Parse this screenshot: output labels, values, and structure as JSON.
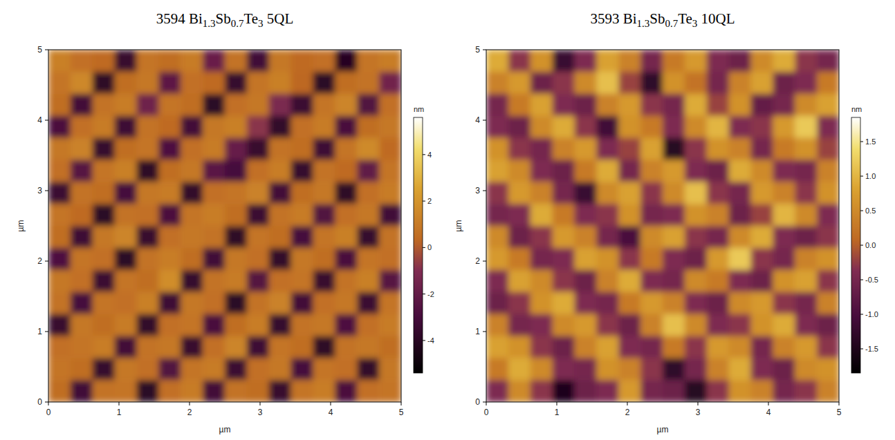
{
  "chart_data": [
    {
      "type": "heatmap",
      "title": "3594 Bi1.3Sb0.7Te3 5QL",
      "x_label": "µm",
      "y_label": "µm",
      "xlim": [
        0,
        5
      ],
      "ylim": [
        0,
        5
      ],
      "xticks": [
        0,
        1,
        2,
        3,
        4,
        5
      ],
      "yticks": [
        0,
        1,
        2,
        3,
        4,
        5
      ],
      "x": [
        0.15625,
        0.46875,
        0.78125,
        1.09375,
        1.40625,
        1.71875,
        2.03125,
        2.34375,
        2.65625,
        2.96875,
        3.28125,
        3.59375,
        3.90625,
        4.21875,
        4.53125,
        4.84375
      ],
      "y": [
        4.84375,
        4.53125,
        4.21875,
        3.90625,
        3.59375,
        3.28125,
        2.96875,
        2.65625,
        2.34375,
        2.03125,
        1.71875,
        1.40625,
        1.09375,
        0.78125,
        0.46875,
        0.15625
      ],
      "cells": [
        [
          1.2,
          0.6,
          0.4,
          -3.5,
          0.8,
          0.5,
          1.0,
          -1.8,
          0.7,
          -3.2,
          0.9,
          0.4,
          0.6,
          -4.1,
          0.8,
          1.1
        ],
        [
          0.8,
          1.5,
          -3.8,
          0.5,
          0.9,
          -2.2,
          0.6,
          0.4,
          -3.6,
          0.8,
          1.2,
          0.3,
          -3.9,
          0.5,
          0.7,
          -1.5
        ],
        [
          0.5,
          -3.1,
          0.7,
          1.1,
          -1.6,
          0.8,
          0.5,
          -3.9,
          0.6,
          0.9,
          -1.2,
          -3.4,
          0.8,
          1.4,
          -2.6,
          0.6
        ],
        [
          -2.8,
          0.6,
          1.0,
          -3.3,
          0.7,
          0.4,
          -3.1,
          0.9,
          1.2,
          -0.8,
          -3.7,
          0.6,
          1.0,
          -2.9,
          0.5,
          0.9
        ],
        [
          0.9,
          1.3,
          -3.6,
          0.5,
          0.8,
          -2.7,
          0.6,
          1.0,
          -1.9,
          -3.5,
          0.7,
          0.5,
          -3.3,
          0.8,
          1.6,
          0.4
        ],
        [
          0.6,
          -2.4,
          0.8,
          1.2,
          -3.8,
          0.5,
          0.9,
          -2.3,
          -3.0,
          0.6,
          1.1,
          -3.6,
          0.7,
          0.4,
          -2.1,
          0.8
        ],
        [
          -3.4,
          0.7,
          0.5,
          -3.0,
          0.9,
          1.0,
          -3.7,
          0.6,
          0.8,
          1.3,
          -3.1,
          0.5,
          0.9,
          -3.8,
          0.6,
          1.0
        ],
        [
          0.8,
          0.4,
          -3.9,
          0.7,
          0.6,
          -2.8,
          0.8,
          1.1,
          0.5,
          -3.4,
          0.7,
          1.0,
          -2.6,
          0.6,
          0.9,
          -3.2
        ],
        [
          0.5,
          -3.3,
          0.9,
          1.4,
          -3.5,
          0.6,
          0.9,
          0.7,
          -3.8,
          0.8,
          0.5,
          -3.0,
          0.8,
          1.2,
          -3.6,
          0.7
        ],
        [
          -2.7,
          0.8,
          0.6,
          -3.9,
          0.7,
          1.1,
          0.5,
          -3.2,
          0.9,
          0.6,
          -3.7,
          0.9,
          0.5,
          -2.9,
          0.8,
          0.6
        ],
        [
          0.9,
          0.6,
          -3.4,
          0.8,
          0.5,
          1.7,
          -3.6,
          0.7,
          1.0,
          -2.5,
          0.6,
          0.8,
          -3.5,
          0.7,
          1.2,
          -2.4
        ],
        [
          0.7,
          -3.0,
          0.8,
          0.6,
          1.2,
          -3.3,
          0.9,
          0.6,
          -3.9,
          0.7,
          1.3,
          -3.1,
          0.6,
          0.9,
          -3.4,
          0.8
        ],
        [
          -3.5,
          0.9,
          0.5,
          1.0,
          -3.7,
          0.6,
          0.8,
          -2.9,
          0.5,
          1.1,
          -3.6,
          0.7,
          0.9,
          -2.7,
          0.6,
          1.0
        ],
        [
          0.6,
          0.8,
          1.1,
          -3.1,
          0.7,
          0.9,
          -3.5,
          0.6,
          1.4,
          -3.3,
          0.8,
          0.5,
          -3.8,
          0.7,
          0.9,
          0.5
        ],
        [
          0.8,
          0.5,
          -3.6,
          0.9,
          0.6,
          -2.6,
          0.8,
          1.0,
          -3.4,
          0.6,
          0.9,
          -3.0,
          0.8,
          0.6,
          -3.7,
          0.9
        ],
        [
          0.5,
          -3.2,
          0.7,
          0.8,
          -3.9,
          0.6,
          1.0,
          -3.1,
          0.7,
          0.5,
          -3.5,
          0.8,
          1.1,
          -2.8,
          0.6,
          0.8
        ]
      ],
      "colorbar": {
        "label": "nm",
        "range": [
          -5.4,
          5.6
        ],
        "ticks": [
          -4,
          -2,
          0,
          2,
          4
        ]
      }
    },
    {
      "type": "heatmap",
      "title": "3593 Bi1.3Sb0.7Te3 10QL",
      "x_label": "µm",
      "y_label": "µm",
      "xlim": [
        0,
        5
      ],
      "ylim": [
        0,
        5
      ],
      "xticks": [
        0,
        1,
        2,
        3,
        4,
        5
      ],
      "yticks": [
        0,
        1,
        2,
        3,
        4,
        5
      ],
      "x": [
        0.15625,
        0.46875,
        0.78125,
        1.09375,
        1.40625,
        1.71875,
        2.03125,
        2.34375,
        2.65625,
        2.96875,
        3.28125,
        3.59375,
        3.90625,
        4.21875,
        4.53125,
        4.84375
      ],
      "y": [
        4.84375,
        4.53125,
        4.21875,
        3.90625,
        3.59375,
        3.28125,
        2.96875,
        2.65625,
        2.34375,
        2.03125,
        1.71875,
        1.40625,
        1.09375,
        0.78125,
        0.46875,
        0.15625
      ],
      "cells": [
        [
          0.9,
          -0.3,
          0.6,
          -1.2,
          -0.4,
          0.8,
          0.4,
          -0.5,
          0.3,
          0.7,
          -0.4,
          -0.6,
          0.5,
          0.9,
          -0.3,
          -0.5
        ],
        [
          0.4,
          0.7,
          -0.6,
          -0.3,
          0.5,
          1.1,
          -0.2,
          -1.3,
          0.6,
          0.2,
          -0.5,
          0.4,
          0.8,
          -0.6,
          -0.4,
          0.3
        ],
        [
          -0.5,
          0.3,
          0.8,
          -0.4,
          -0.6,
          0.4,
          0.7,
          -0.3,
          -0.5,
          0.9,
          -0.2,
          0.6,
          -0.7,
          -0.5,
          0.5,
          0.8
        ],
        [
          -0.4,
          -0.6,
          0.5,
          0.9,
          -0.3,
          -1.1,
          0.6,
          0.3,
          -0.4,
          0.5,
          1.0,
          -0.4,
          -0.3,
          0.7,
          1.2,
          -0.4
        ],
        [
          0.6,
          -0.3,
          -0.5,
          0.4,
          0.7,
          -0.4,
          -0.2,
          0.8,
          -1.4,
          -0.3,
          0.6,
          0.4,
          -0.5,
          0.3,
          0.6,
          -0.2
        ],
        [
          0.8,
          0.5,
          -0.4,
          -0.6,
          0.3,
          0.9,
          -0.5,
          0.4,
          0.7,
          -0.4,
          -0.6,
          0.9,
          0.5,
          -0.4,
          -0.5,
          0.4
        ],
        [
          -0.3,
          0.7,
          0.4,
          -0.5,
          -1.2,
          0.5,
          0.8,
          -0.3,
          0.5,
          1.1,
          -0.3,
          -0.5,
          0.7,
          0.4,
          -0.3,
          0.6
        ],
        [
          -0.5,
          -0.4,
          0.9,
          0.3,
          -0.4,
          -0.3,
          0.6,
          -0.5,
          -0.4,
          0.6,
          0.4,
          -0.6,
          -0.2,
          1.0,
          0.5,
          -0.4
        ],
        [
          0.5,
          -0.6,
          -0.3,
          0.7,
          0.4,
          -0.5,
          -1.0,
          0.5,
          0.8,
          -0.3,
          -0.5,
          0.5,
          0.9,
          -0.4,
          -0.6,
          -0.3
        ],
        [
          0.7,
          0.3,
          -0.5,
          -0.4,
          0.8,
          0.6,
          -0.3,
          0.3,
          -0.4,
          -0.6,
          0.7,
          1.2,
          -0.3,
          -0.5,
          0.4,
          0.6
        ],
        [
          -0.4,
          0.8,
          0.5,
          -0.3,
          -0.6,
          0.4,
          0.9,
          -0.4,
          -0.5,
          0.5,
          0.3,
          -0.4,
          -0.6,
          0.6,
          0.8,
          -0.3
        ],
        [
          -0.6,
          -0.3,
          0.6,
          0.9,
          -0.4,
          -0.5,
          0.3,
          0.7,
          0.4,
          -0.4,
          -0.6,
          0.5,
          0.7,
          -0.3,
          -0.5,
          0.4
        ],
        [
          0.4,
          -0.5,
          -0.4,
          0.5,
          0.7,
          -0.3,
          -0.6,
          0.4,
          1.1,
          0.5,
          -0.4,
          -0.3,
          0.6,
          0.9,
          -0.4,
          -0.6
        ],
        [
          0.8,
          0.6,
          -0.3,
          -0.6,
          0.4,
          0.8,
          -0.4,
          -0.5,
          0.3,
          -0.3,
          0.7,
          0.5,
          -0.5,
          0.4,
          0.7,
          -0.3
        ],
        [
          0.3,
          0.9,
          0.5,
          -0.4,
          -0.5,
          0.6,
          0.4,
          -0.3,
          -1.3,
          -0.5,
          0.4,
          0.9,
          -0.4,
          -0.6,
          0.5,
          0.6
        ],
        [
          -0.4,
          0.5,
          -0.3,
          -1.5,
          -0.6,
          -0.4,
          0.7,
          -0.5,
          -0.6,
          -1.4,
          -0.3,
          0.6,
          0.4,
          -0.5,
          -0.3,
          0.4
        ]
      ],
      "colorbar": {
        "label": "nm",
        "range": [
          -1.85,
          1.85
        ],
        "ticks": [
          {
            "value": -1.5,
            "label": "-1.5"
          },
          {
            "value": -1,
            "label": "-1.0"
          },
          {
            "value": -0.5,
            "label": "-0.5"
          },
          {
            "value": 0,
            "label": "0.0"
          },
          {
            "value": 0.5,
            "label": "0.5"
          },
          {
            "value": 1,
            "label": "1.0"
          },
          {
            "value": 1.5,
            "label": "1.5"
          }
        ]
      }
    }
  ]
}
